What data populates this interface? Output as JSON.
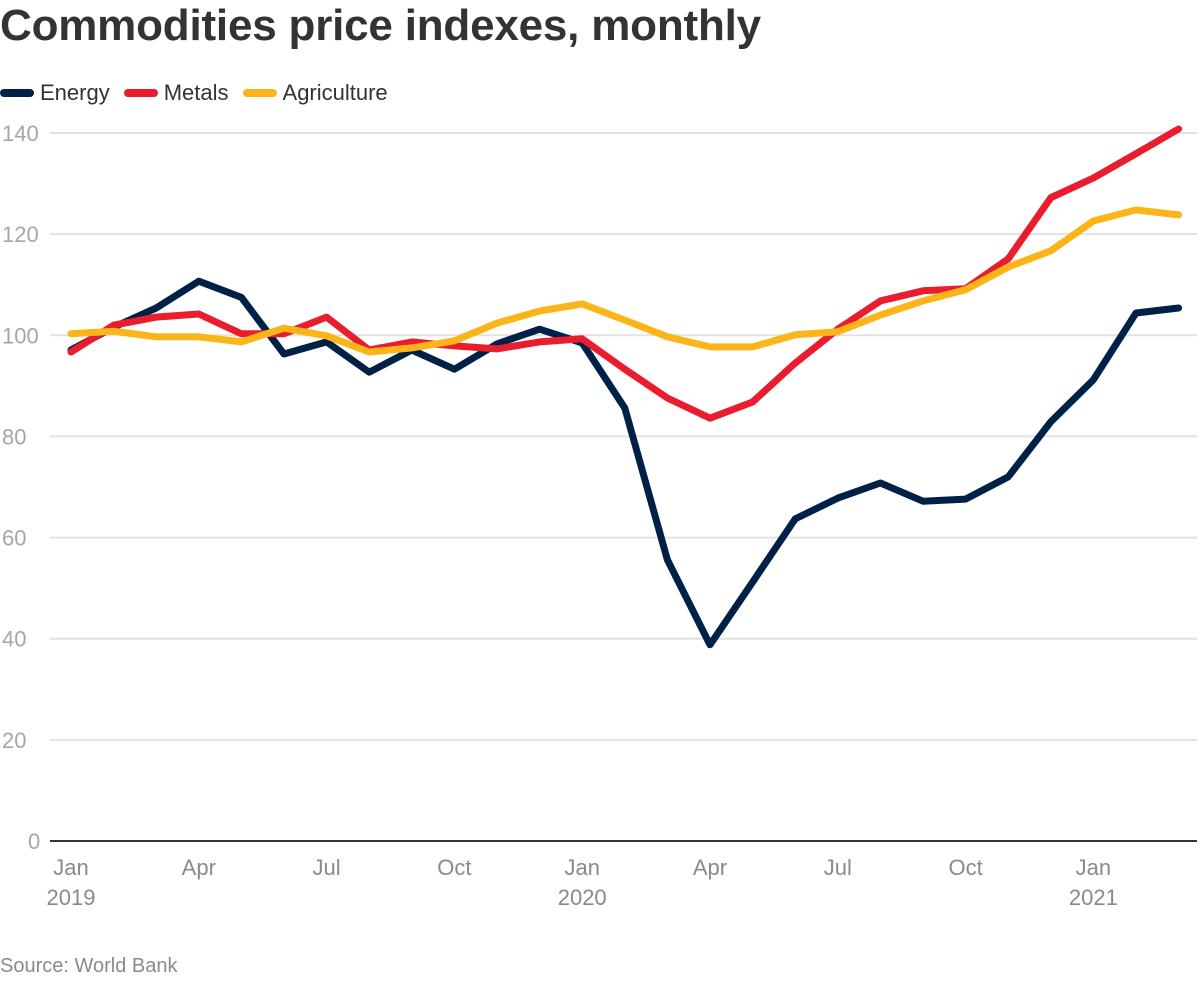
{
  "chart_data": {
    "type": "line",
    "title": "Commodities price indexes, monthly",
    "xlabel": "",
    "ylabel": "",
    "ylim": [
      0,
      140
    ],
    "yticks": [
      0,
      20,
      40,
      60,
      80,
      100,
      120,
      140
    ],
    "grid": true,
    "legend_position": "top-left",
    "x": [
      "2019-01",
      "2019-02",
      "2019-03",
      "2019-04",
      "2019-05",
      "2019-06",
      "2019-07",
      "2019-08",
      "2019-09",
      "2019-10",
      "2019-11",
      "2019-12",
      "2020-01",
      "2020-02",
      "2020-03",
      "2020-04",
      "2020-05",
      "2020-06",
      "2020-07",
      "2020-08",
      "2020-09",
      "2020-10",
      "2020-11",
      "2020-12",
      "2021-01",
      "2021-02",
      "2021-03"
    ],
    "xticks": [
      {
        "index": 0,
        "label": "Jan",
        "sublabel": "2019"
      },
      {
        "index": 3,
        "label": "Apr",
        "sublabel": ""
      },
      {
        "index": 6,
        "label": "Jul",
        "sublabel": ""
      },
      {
        "index": 9,
        "label": "Oct",
        "sublabel": ""
      },
      {
        "index": 12,
        "label": "Jan",
        "sublabel": "2020"
      },
      {
        "index": 15,
        "label": "Apr",
        "sublabel": ""
      },
      {
        "index": 18,
        "label": "Jul",
        "sublabel": ""
      },
      {
        "index": 21,
        "label": "Oct",
        "sublabel": ""
      },
      {
        "index": 24,
        "label": "Jan",
        "sublabel": "2021"
      }
    ],
    "series": [
      {
        "name": "Energy",
        "color": "#002147",
        "values": [
          97.1,
          101.6,
          105.4,
          110.7,
          107.5,
          96.3,
          98.7,
          92.7,
          97.1,
          93.3,
          98.3,
          101.2,
          98.5,
          85.6,
          55.6,
          38.8,
          51.2,
          63.7,
          67.8,
          70.8,
          67.2,
          67.6,
          72.0,
          82.9,
          91.2,
          104.4,
          105.4
        ]
      },
      {
        "name": "Metals",
        "color": "#e91d2d",
        "values": [
          96.7,
          102.0,
          103.6,
          104.2,
          100.3,
          100.3,
          103.6,
          97.1,
          98.7,
          97.9,
          97.3,
          98.7,
          99.3,
          93.3,
          87.6,
          83.6,
          86.8,
          94.5,
          101.2,
          106.8,
          108.8,
          109.2,
          115.1,
          127.2,
          131.1,
          135.9,
          140.8
        ]
      },
      {
        "name": "Agriculture",
        "color": "#fbb519",
        "values": [
          100.3,
          100.8,
          99.7,
          99.7,
          98.7,
          101.4,
          99.9,
          96.7,
          97.5,
          98.9,
          102.4,
          104.8,
          106.2,
          103.0,
          99.7,
          97.7,
          97.7,
          100.1,
          100.7,
          104.0,
          106.8,
          109.0,
          113.5,
          116.7,
          122.6,
          124.8,
          123.8
        ]
      }
    ],
    "source": "Source: World Bank"
  }
}
